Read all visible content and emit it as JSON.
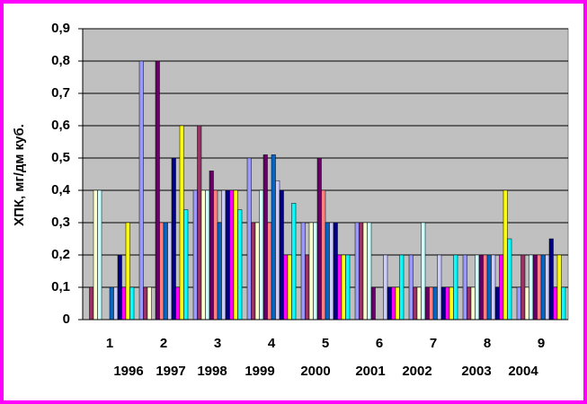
{
  "chart_data": {
    "type": "bar",
    "y_label": "ХПК, мг/дм куб.",
    "categories": [
      "1",
      "2",
      "3",
      "4",
      "5",
      "6",
      "7",
      "8",
      "9"
    ],
    "annotations": [
      "1996",
      "1997",
      "1998",
      "1999",
      "2000",
      "2001",
      "2002",
      "2003",
      "2004"
    ],
    "ylim": [
      0,
      0.9
    ],
    "yticks": [
      0,
      {
        "value": 0.1,
        "label": "0,1"
      },
      {
        "value": 0.2,
        "label": "0,2"
      },
      {
        "value": 0.3,
        "label": "0,3"
      },
      {
        "value": 0.4,
        "label": "0,4"
      },
      {
        "value": 0.5,
        "label": "0,5"
      },
      {
        "value": 0.6,
        "label": "0,6"
      },
      {
        "value": 0.7,
        "label": "0,7"
      },
      {
        "value": 0.8,
        "label": "0,8"
      },
      {
        "value": 0.9,
        "label": "0,9"
      }
    ],
    "grid": true,
    "series": [
      {
        "color": "#9999FF",
        "values": [
          0,
          0.8,
          0.4,
          0.5,
          0.3,
          0.3,
          0.2,
          0.2,
          0.1
        ]
      },
      {
        "color": "#993366",
        "values": [
          0.1,
          0.1,
          0.6,
          0.3,
          0.2,
          0.3,
          0.1,
          0.1,
          0.2
        ]
      },
      {
        "color": "#FFFFCC",
        "values": [
          0.4,
          0.1,
          0.4,
          0.3,
          0.3,
          0.3,
          0.1,
          0.1,
          0.1
        ]
      },
      {
        "color": "#CCFFFF",
        "values": [
          0.4,
          0,
          0.4,
          0.4,
          0.3,
          0.3,
          0.3,
          0.2,
          0.2
        ]
      },
      {
        "color": "#660066",
        "values": [
          0,
          0.8,
          0.46,
          0.51,
          0.5,
          0.1,
          0.1,
          0.2,
          0.2
        ]
      },
      {
        "color": "#FF8080",
        "values": [
          0,
          0.3,
          0.4,
          0.3,
          0.4,
          0,
          0.1,
          0.2,
          0.2
        ]
      },
      {
        "color": "#0066CC",
        "values": [
          0.1,
          0.3,
          0.3,
          0.51,
          0.3,
          0,
          0.1,
          0.2,
          0.2
        ]
      },
      {
        "color": "#CCCCFF",
        "values": [
          0.1,
          0.3,
          0.4,
          0.43,
          0.3,
          0.2,
          0.2,
          0.2,
          0.2
        ]
      },
      {
        "color": "#000080",
        "values": [
          0.2,
          0.5,
          0.4,
          0.4,
          0.3,
          0.1,
          0.1,
          0.1,
          0.25
        ]
      },
      {
        "color": "#FF00FF",
        "values": [
          0.1,
          0.1,
          0.4,
          0.2,
          0.2,
          0.1,
          0.1,
          0.2,
          0.1
        ]
      },
      {
        "color": "#FFFF00",
        "values": [
          0.3,
          0.6,
          0.4,
          0.2,
          0.2,
          0.1,
          0.1,
          0.4,
          0.2
        ]
      },
      {
        "color": "#00FFFF",
        "values": [
          0.1,
          0.34,
          0.34,
          0.36,
          0.2,
          0.2,
          0.2,
          0.25,
          0.1
        ]
      }
    ]
  }
}
